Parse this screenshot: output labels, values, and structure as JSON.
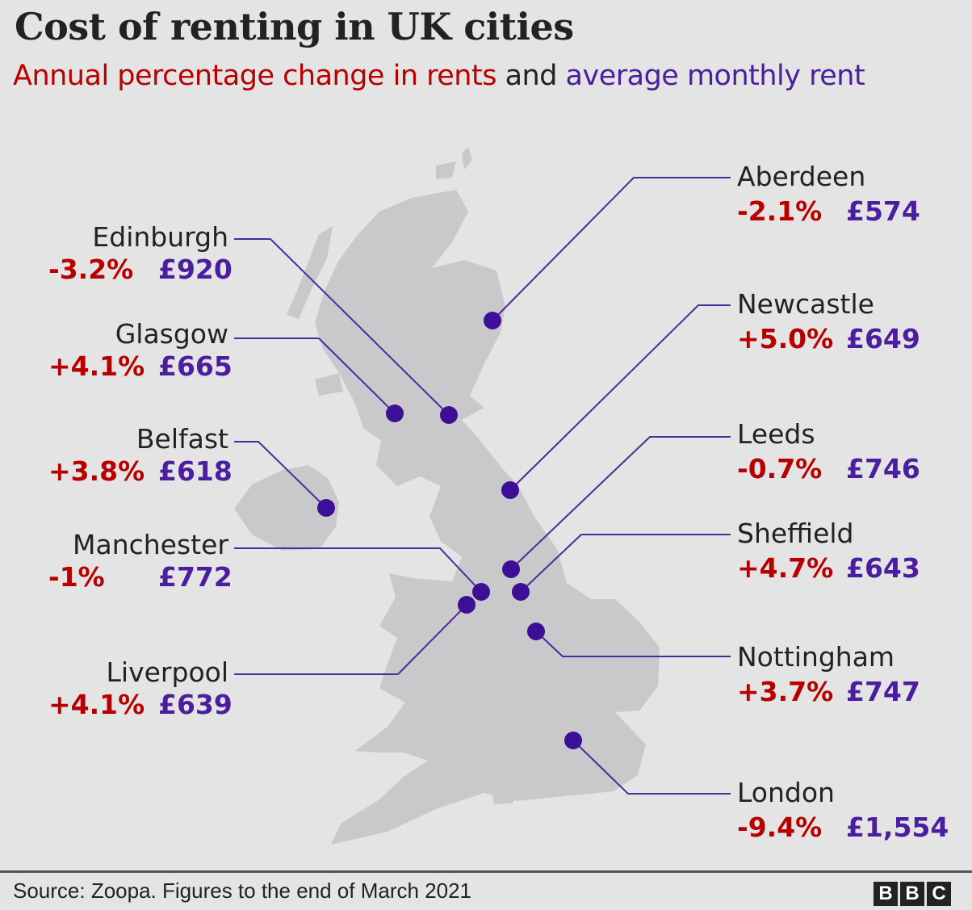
{
  "header": {
    "title": "Cost of renting in UK cities",
    "subtitle_part1": "Annual percentage change in rents",
    "subtitle_part2": " and ",
    "subtitle_part3": "average monthly rent"
  },
  "colors": {
    "change": "#b80000",
    "rent": "#4a1e9e",
    "marker": "#3c0f96",
    "land": "#c9c9cc",
    "background": "#e4e4e4"
  },
  "cities": [
    {
      "name": "Edinburgh",
      "change": "-3.2%",
      "rent": "£920"
    },
    {
      "name": "Glasgow",
      "change": "+4.1%",
      "rent": "£665"
    },
    {
      "name": "Belfast",
      "change": "+3.8%",
      "rent": "£618"
    },
    {
      "name": "Manchester",
      "change": "-1%",
      "rent": "£772"
    },
    {
      "name": "Liverpool",
      "change": "+4.1%",
      "rent": "£639"
    },
    {
      "name": "Aberdeen",
      "change": "-2.1%",
      "rent": "£574"
    },
    {
      "name": "Newcastle",
      "change": "+5.0%",
      "rent": "£649"
    },
    {
      "name": "Leeds",
      "change": "-0.7%",
      "rent": "£746"
    },
    {
      "name": "Sheffield",
      "change": "+4.7%",
      "rent": "£643"
    },
    {
      "name": "Nottingham",
      "change": "+3.7%",
      "rent": "£747"
    },
    {
      "name": "London",
      "change": "-9.4%",
      "rent": "£1,554"
    }
  ],
  "footer": {
    "source": "Source: Zoopa. Figures to the end of March 2021",
    "logo": "BBC"
  }
}
